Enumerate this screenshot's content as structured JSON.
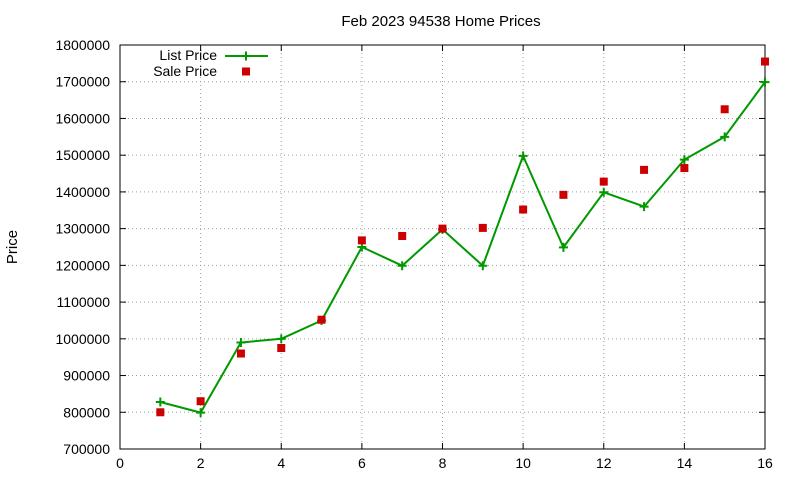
{
  "chart_data": {
    "type": "line",
    "title": "Feb 2023 94538 Home Prices",
    "xlabel": "",
    "ylabel": "Price",
    "xlim": [
      0,
      16
    ],
    "ylim": [
      700000,
      1800000
    ],
    "xticks": [
      "0",
      "2",
      "4",
      "6",
      "8",
      "10",
      "12",
      "14",
      "16"
    ],
    "xtick_values": [
      0,
      2,
      4,
      6,
      8,
      10,
      12,
      14,
      16
    ],
    "yticks": [
      "700000",
      "800000",
      "900000",
      "1000000",
      "1100000",
      "1200000",
      "1300000",
      "1400000",
      "1500000",
      "1600000",
      "1700000",
      "1800000"
    ],
    "ytick_values": [
      700000,
      800000,
      900000,
      1000000,
      1100000,
      1200000,
      1300000,
      1400000,
      1500000,
      1600000,
      1700000,
      1800000
    ],
    "grid": true,
    "legend_position": "top-left",
    "series": [
      {
        "name": "List Price",
        "style": "linespoints",
        "color": "#009900",
        "marker": "plus",
        "x": [
          1,
          2,
          3,
          4,
          5,
          6,
          7,
          8,
          9,
          10,
          11,
          12,
          13,
          14,
          15,
          16
        ],
        "y": [
          828000,
          799000,
          990000,
          1000000,
          1050000,
          1250000,
          1199000,
          1298000,
          1199000,
          1498000,
          1249000,
          1399000,
          1360000,
          1488000,
          1550000,
          1699000
        ]
      },
      {
        "name": "Sale Price",
        "style": "points",
        "color": "#cc0000",
        "marker": "square",
        "x": [
          1,
          2,
          3,
          4,
          5,
          6,
          7,
          8,
          9,
          10,
          11,
          12,
          13,
          14,
          15,
          16
        ],
        "y": [
          800000,
          830000,
          960000,
          975000,
          1052000,
          1268000,
          1280000,
          1300000,
          1302000,
          1352000,
          1392000,
          1428000,
          1460000,
          1465000,
          1625000,
          1755000
        ]
      }
    ]
  }
}
